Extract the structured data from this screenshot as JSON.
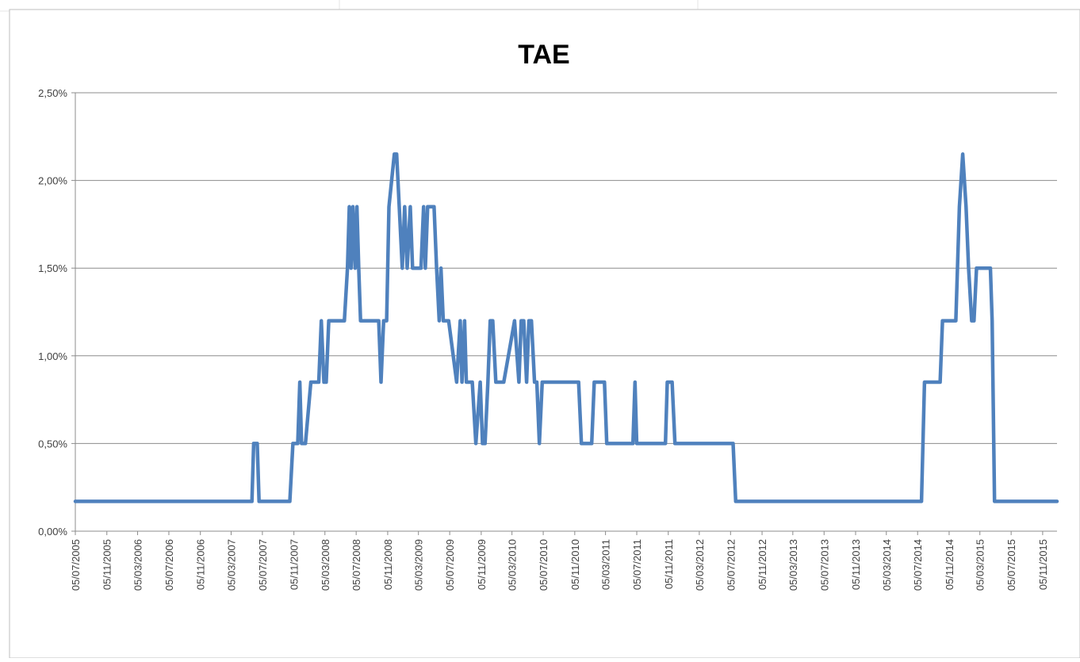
{
  "chart_data": {
    "type": "line",
    "title": "TAE",
    "xlabel": "",
    "ylabel": "",
    "x_axis_type": "date",
    "xlim": [
      "2005-07-05",
      "2015-12-31"
    ],
    "ylim": [
      0,
      0.025
    ],
    "y_ticks": [
      0,
      0.005,
      0.01,
      0.015,
      0.02,
      0.025
    ],
    "y_tick_labels": [
      "0,00%",
      "0,50%",
      "1,00%",
      "1,50%",
      "2,00%",
      "2,50%"
    ],
    "x_ticks": [
      "2005-07-05",
      "2005-11-05",
      "2006-03-05",
      "2006-07-05",
      "2006-11-05",
      "2007-03-05",
      "2007-07-05",
      "2007-11-05",
      "2008-03-05",
      "2008-07-05",
      "2008-11-05",
      "2009-03-05",
      "2009-07-05",
      "2009-11-05",
      "2010-03-05",
      "2010-07-05",
      "2010-11-05",
      "2011-03-05",
      "2011-07-05",
      "2011-11-05",
      "2012-03-05",
      "2012-07-05",
      "2012-11-05",
      "2013-03-05",
      "2013-07-05",
      "2013-11-05",
      "2014-03-05",
      "2014-07-05",
      "2014-11-05",
      "2015-03-05",
      "2015-07-05",
      "2015-11-05"
    ],
    "x_tick_labels": [
      "05/07/2005",
      "05/11/2005",
      "05/03/2006",
      "05/07/2006",
      "05/11/2006",
      "05/03/2007",
      "05/07/2007",
      "05/11/2007",
      "05/03/2008",
      "05/07/2008",
      "05/11/2008",
      "05/03/2009",
      "05/07/2009",
      "05/11/2009",
      "05/03/2010",
      "05/07/2010",
      "05/11/2010",
      "05/03/2011",
      "05/07/2011",
      "05/11/2011",
      "05/03/2012",
      "05/07/2012",
      "05/11/2012",
      "05/03/2013",
      "05/07/2013",
      "05/11/2013",
      "05/03/2014",
      "05/07/2014",
      "05/11/2014",
      "05/03/2015",
      "05/07/2015",
      "05/11/2015"
    ],
    "grid": "horizontal",
    "legend": "none",
    "series_color": "#4f81bd",
    "series": [
      {
        "x": [
          "2005-07-05",
          "2007-05-25",
          "2007-06-01",
          "2007-06-15",
          "2007-06-22",
          "2007-07-01",
          "2007-10-20",
          "2007-11-01",
          "2007-11-20",
          "2007-11-28",
          "2007-12-05",
          "2007-12-20",
          "2008-01-10",
          "2008-01-31",
          "2008-02-10",
          "2008-02-20",
          "2008-03-01",
          "2008-03-10",
          "2008-03-20",
          "2008-05-20",
          "2008-06-01",
          "2008-06-08",
          "2008-06-15",
          "2008-06-22",
          "2008-07-01",
          "2008-07-08",
          "2008-07-15",
          "2008-07-22",
          "2008-08-01",
          "2008-10-01",
          "2008-10-10",
          "2008-10-20",
          "2008-11-01",
          "2008-11-10",
          "2008-12-01",
          "2008-12-10",
          "2008-12-20",
          "2009-01-01",
          "2009-01-10",
          "2009-01-20",
          "2009-02-01",
          "2009-02-10",
          "2009-02-20",
          "2009-03-15",
          "2009-03-25",
          "2009-04-01",
          "2009-04-10",
          "2009-04-20",
          "2009-05-05",
          "2009-05-15",
          "2009-05-25",
          "2009-06-01",
          "2009-06-10",
          "2009-06-20",
          "2009-07-01",
          "2009-08-01",
          "2009-08-15",
          "2009-08-22",
          "2009-09-01",
          "2009-09-08",
          "2009-09-15",
          "2009-09-22",
          "2009-10-01",
          "2009-10-15",
          "2009-11-01",
          "2009-11-10",
          "2009-11-20",
          "2009-12-01",
          "2009-12-10",
          "2009-12-20",
          "2010-01-01",
          "2010-01-15",
          "2010-02-01",
          "2010-03-15",
          "2010-04-01",
          "2010-04-10",
          "2010-04-20",
          "2010-05-01",
          "2010-05-10",
          "2010-05-20",
          "2010-06-01",
          "2010-06-10",
          "2010-06-20",
          "2010-07-01",
          "2010-07-15",
          "2010-07-25",
          "2010-08-05",
          "2010-11-20",
          "2010-12-01",
          "2011-01-10",
          "2011-01-20",
          "2011-03-01",
          "2011-03-10",
          "2011-06-20",
          "2011-06-28",
          "2011-07-05",
          "2011-10-25",
          "2011-11-01",
          "2011-11-20",
          "2011-12-01",
          "2012-07-15",
          "2012-07-25",
          "2014-07-20",
          "2014-08-01",
          "2014-10-01",
          "2014-10-10",
          "2014-12-01",
          "2014-12-15",
          "2014-12-28",
          "2015-01-10",
          "2015-01-20",
          "2015-02-01",
          "2015-02-10",
          "2015-02-20",
          "2015-03-01",
          "2015-04-15",
          "2015-04-22",
          "2015-05-01",
          "2015-05-10",
          "2015-12-31"
        ],
        "y": [
          0.0017,
          0.0017,
          0.005,
          0.005,
          0.0017,
          0.0017,
          0.0017,
          0.005,
          0.005,
          0.0085,
          0.005,
          0.005,
          0.0085,
          0.0085,
          0.0085,
          0.012,
          0.0085,
          0.0085,
          0.012,
          0.012,
          0.015,
          0.0185,
          0.015,
          0.0185,
          0.015,
          0.0185,
          0.015,
          0.012,
          0.012,
          0.012,
          0.0085,
          0.012,
          0.012,
          0.0185,
          0.0215,
          0.0215,
          0.0185,
          0.015,
          0.0185,
          0.015,
          0.0185,
          0.015,
          0.015,
          0.015,
          0.0185,
          0.015,
          0.0185,
          0.0185,
          0.0185,
          0.015,
          0.012,
          0.015,
          0.012,
          0.012,
          0.012,
          0.0085,
          0.012,
          0.0085,
          0.012,
          0.0085,
          0.0085,
          0.0085,
          0.0085,
          0.005,
          0.0085,
          0.005,
          0.005,
          0.0085,
          0.012,
          0.012,
          0.0085,
          0.0085,
          0.0085,
          0.012,
          0.0085,
          0.012,
          0.012,
          0.0085,
          0.012,
          0.012,
          0.0085,
          0.0085,
          0.005,
          0.0085,
          0.0085,
          0.0085,
          0.0085,
          0.0085,
          0.005,
          0.005,
          0.0085,
          0.0085,
          0.005,
          0.005,
          0.0085,
          0.005,
          0.005,
          0.0085,
          0.0085,
          0.005,
          0.005,
          0.0017,
          0.0017,
          0.0085,
          0.0085,
          0.012,
          0.012,
          0.0185,
          0.0215,
          0.0185,
          0.015,
          0.012,
          0.012,
          0.015,
          0.015,
          0.015,
          0.012,
          0.0017,
          0.0017,
          0.0017
        ]
      }
    ]
  }
}
